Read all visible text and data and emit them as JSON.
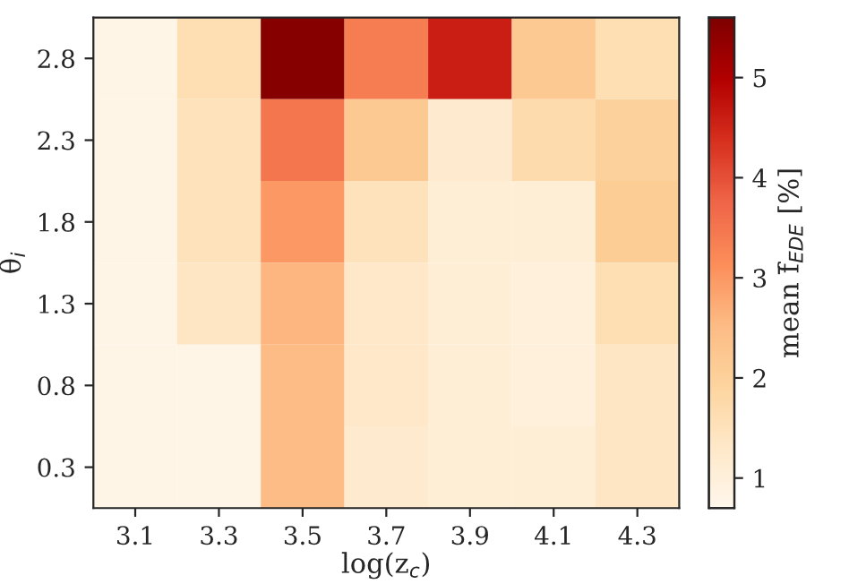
{
  "chart_data": {
    "type": "heatmap",
    "xlabel": "log(z$_{c}$)",
    "ylabel": "θ$_{i}$",
    "clabel": "mean f̄$_{EDE}$ [%]",
    "categories": [
      "3.1",
      "3.3",
      "3.5",
      "3.7",
      "3.9",
      "4.1",
      "4.3"
    ],
    "y_categories": [
      "2.8",
      "2.3",
      "1.8",
      "1.3",
      "0.8",
      "0.3"
    ],
    "cells": [
      [
        0.8,
        1.6,
        5.5,
        3.4,
        4.6,
        2.2,
        1.6
      ],
      [
        0.8,
        1.5,
        3.5,
        2.2,
        1.2,
        1.7,
        2.0
      ],
      [
        0.8,
        1.5,
        3.0,
        1.5,
        1.1,
        1.1,
        2.1
      ],
      [
        0.8,
        1.4,
        2.6,
        1.3,
        1.1,
        1.0,
        1.6
      ],
      [
        0.8,
        0.8,
        2.5,
        1.3,
        1.1,
        1.0,
        1.4
      ],
      [
        0.8,
        0.8,
        2.5,
        1.2,
        1.1,
        1.1,
        1.4
      ]
    ],
    "clim": [
      0.7,
      5.6
    ],
    "cticks": [
      1,
      2,
      3,
      4,
      5
    ]
  }
}
